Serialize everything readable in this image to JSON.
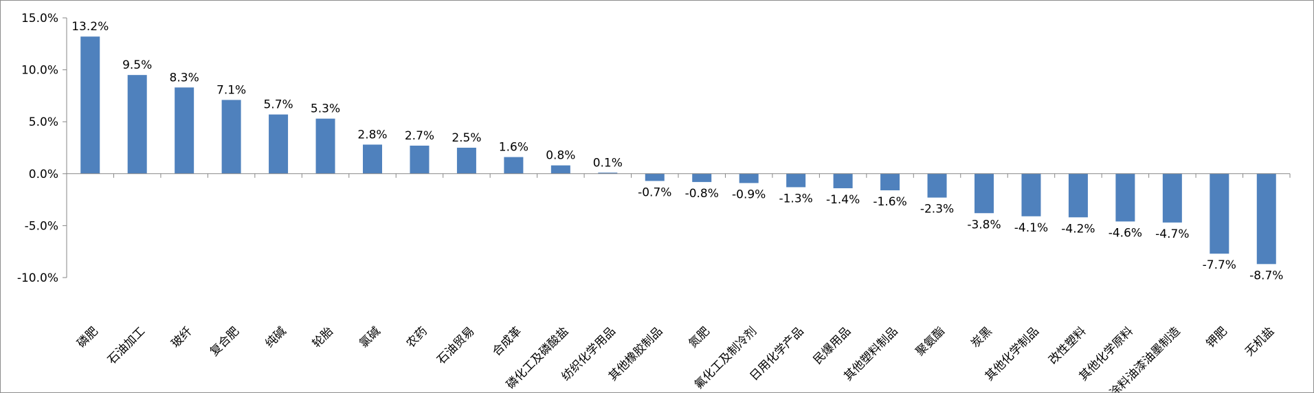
{
  "chart_data": {
    "type": "bar",
    "categories": [
      "磷肥",
      "石油加工",
      "玻纤",
      "复合肥",
      "纯碱",
      "轮胎",
      "氯碱",
      "农药",
      "石油贸易",
      "合成革",
      "磷化工及磷酸盐",
      "纺织化学用品",
      "其他橡胶制品",
      "氮肥",
      "氟化工及制冷剂",
      "日用化学产品",
      "民爆用品",
      "其他塑料制品",
      "聚氨酯",
      "炭黑",
      "其他化学制品",
      "改性塑料",
      "其他化学原料",
      "涂料油漆油墨制造",
      "钾肥",
      "无机盐"
    ],
    "values": [
      13.2,
      9.5,
      8.3,
      7.1,
      5.7,
      5.3,
      2.8,
      2.7,
      2.5,
      1.6,
      0.8,
      0.1,
      -0.7,
      -0.8,
      -0.9,
      -1.3,
      -1.4,
      -1.6,
      -2.3,
      -3.8,
      -4.1,
      -4.2,
      -4.6,
      -4.7,
      -7.7,
      -8.7
    ],
    "value_labels": [
      "13.2%",
      "9.5%",
      "8.3%",
      "7.1%",
      "5.7%",
      "5.3%",
      "2.8%",
      "2.7%",
      "2.5%",
      "1.6%",
      "0.8%",
      "0.1%",
      "-0.7%",
      "-0.8%",
      "-0.9%",
      "-1.3%",
      "-1.4%",
      "-1.6%",
      "-2.3%",
      "-3.8%",
      "-4.1%",
      "-4.2%",
      "-4.6%",
      "-4.7%",
      "-7.7%",
      "-8.7%"
    ],
    "y_ticks": [
      15,
      10,
      5,
      0,
      -5,
      -10
    ],
    "y_tick_labels": [
      "15.0%",
      "10.0%",
      "5.0%",
      "0.0%",
      "-5.0%",
      "-10.0%"
    ],
    "ylim": [
      -10,
      15
    ],
    "grid": false,
    "legend": "none",
    "bar_color": "#4f81bd"
  }
}
